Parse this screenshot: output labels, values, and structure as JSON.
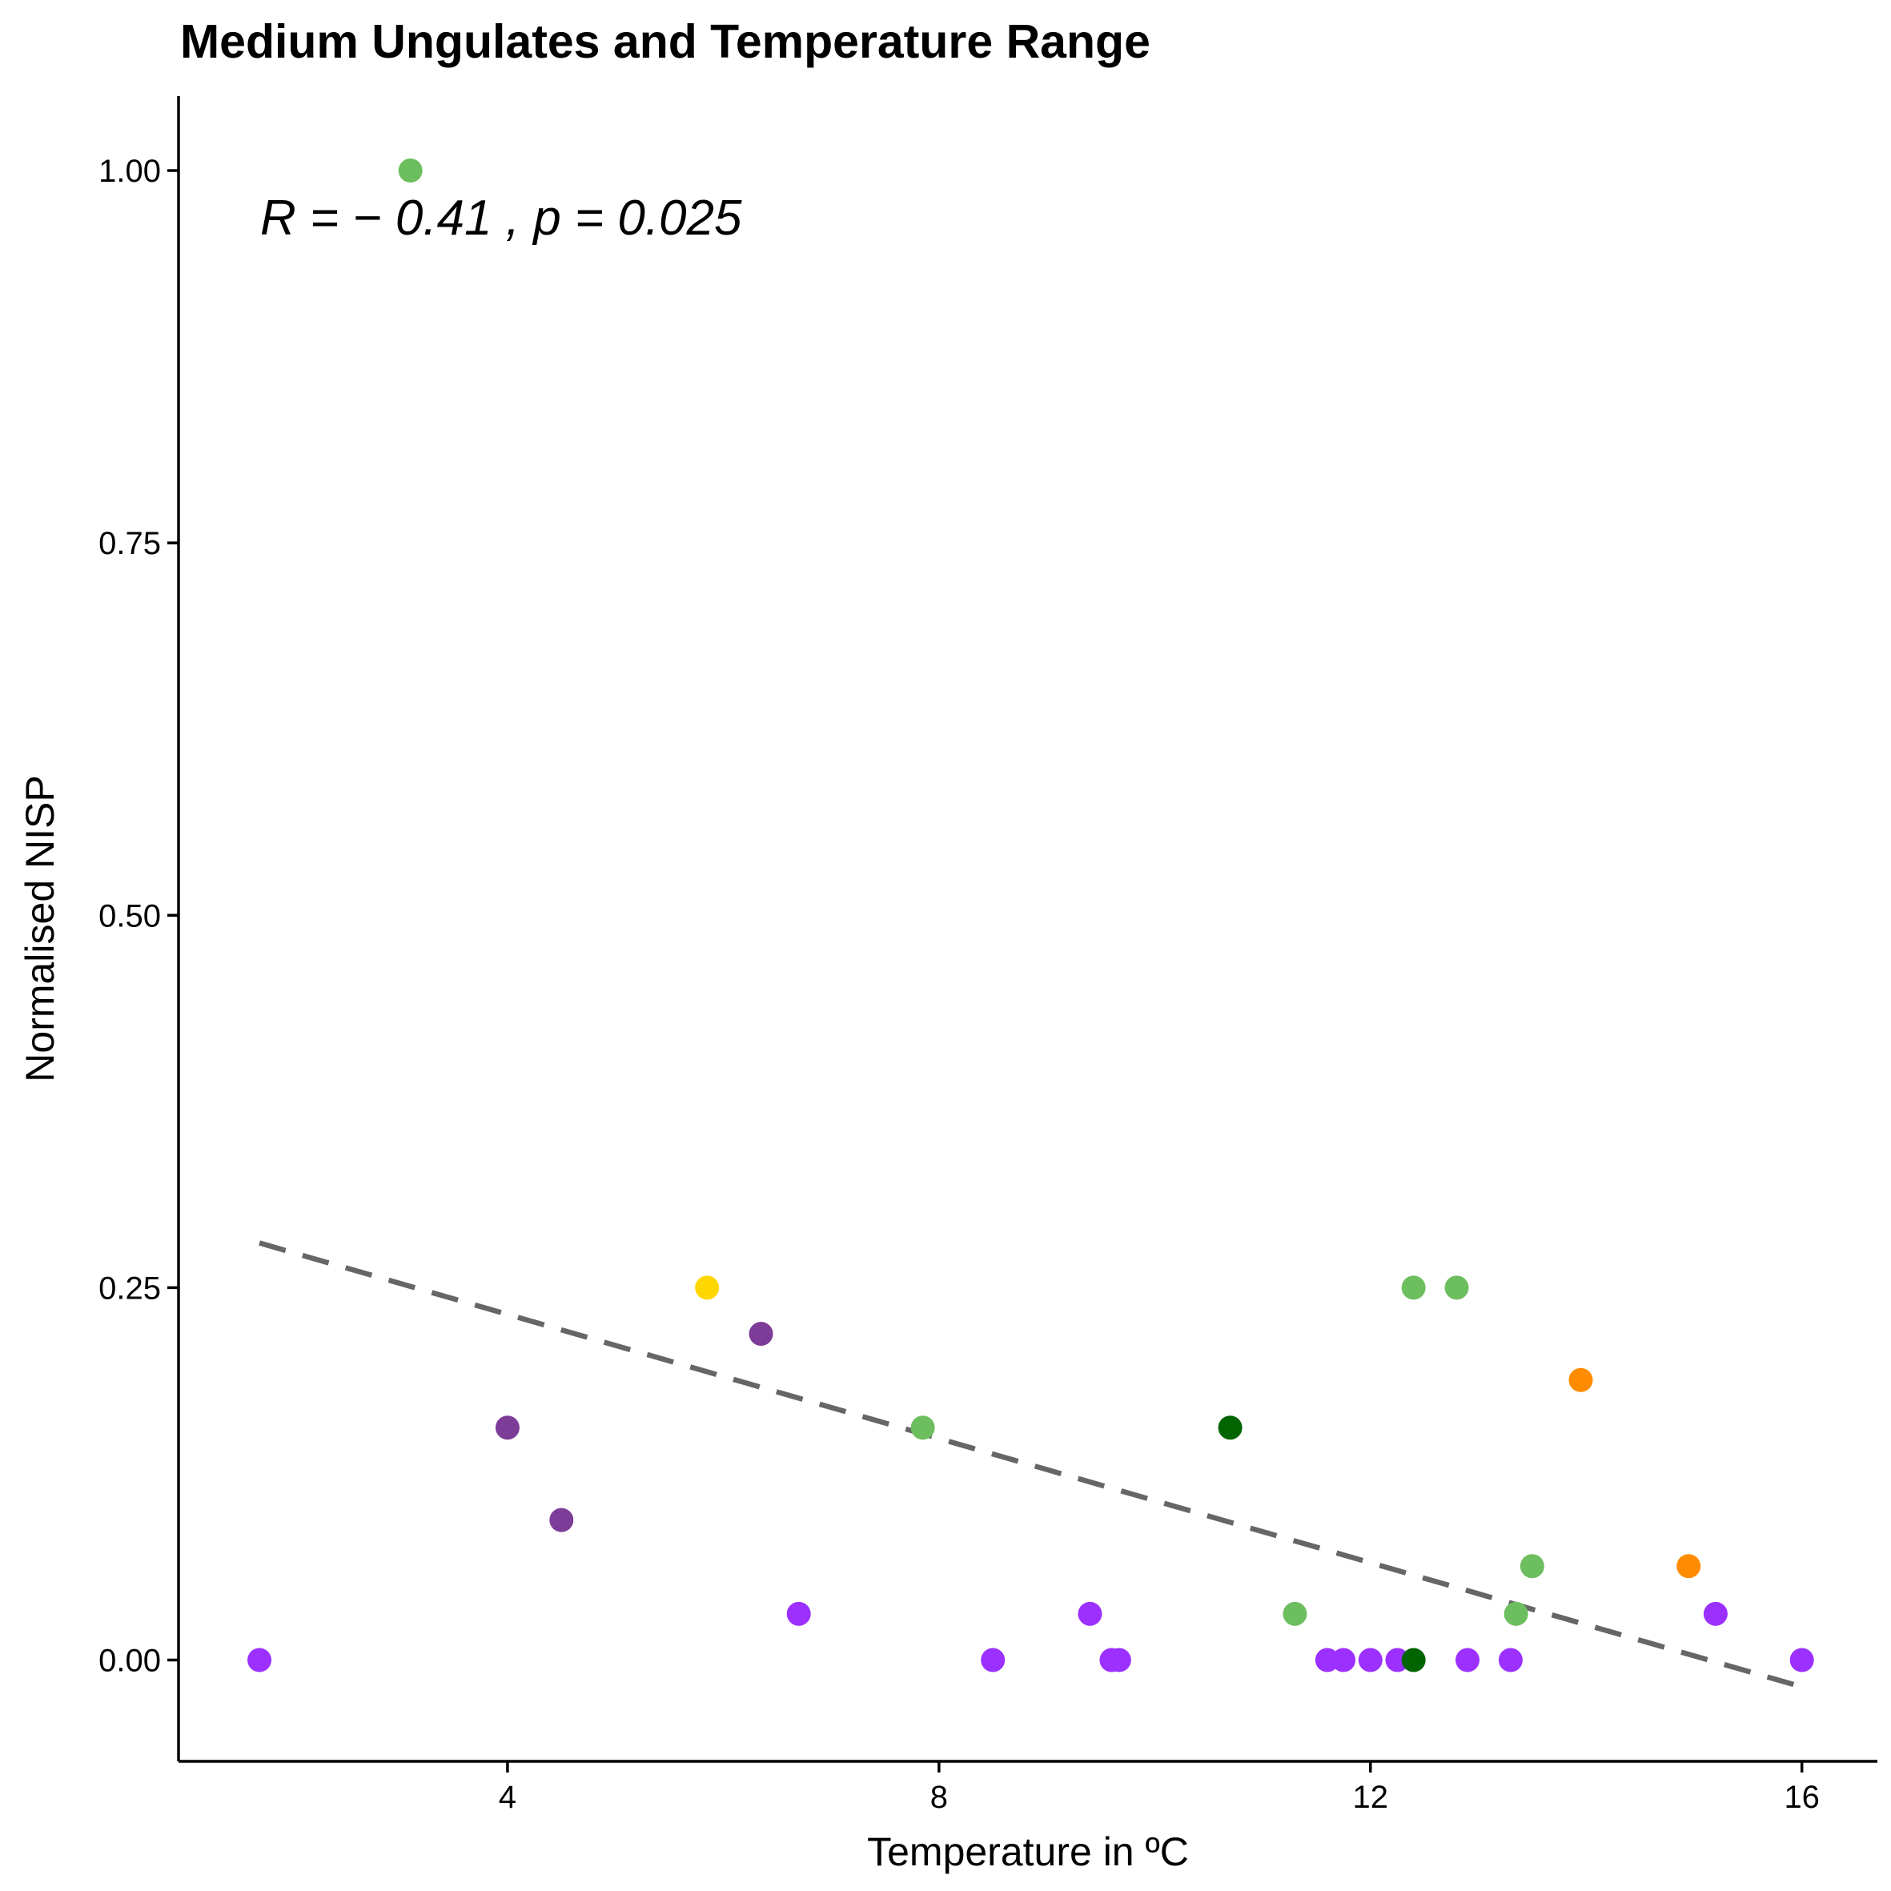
{
  "chart_data": {
    "type": "scatter",
    "title": "Medium Ungulates and Temperature Range",
    "xlabel": "Temperature in ºC",
    "ylabel": "Normalised NISP",
    "xlim": [
      0.95,
      16.7
    ],
    "ylim": [
      -0.068,
      1.05
    ],
    "x_ticks": [
      4,
      8,
      12,
      16
    ],
    "x_tick_labels": [
      "4",
      "8",
      "12",
      "16"
    ],
    "y_ticks": [
      0,
      0.25,
      0.5,
      0.75,
      1
    ],
    "y_tick_labels": [
      "0.00",
      "0.25",
      "0.50",
      "0.75",
      "1.00"
    ],
    "grid": false,
    "annotation": "R = − 0.41 , p = 0.025",
    "colors": {
      "purple": "#9B30FF",
      "darkpurple": "#7D3C98",
      "lightgreen": "#6DBE5E",
      "darkgreen": "#006400",
      "gold": "#FFD700",
      "orange": "#FF8C00",
      "trend": "#666666"
    },
    "points": [
      {
        "x": 1.7,
        "y": 0.0,
        "color": "purple"
      },
      {
        "x": 3.1,
        "y": 1.0,
        "color": "lightgreen"
      },
      {
        "x": 4.0,
        "y": 0.156,
        "color": "darkpurple"
      },
      {
        "x": 4.5,
        "y": 0.094,
        "color": "darkpurple"
      },
      {
        "x": 5.85,
        "y": 0.25,
        "color": "gold"
      },
      {
        "x": 6.35,
        "y": 0.219,
        "color": "darkpurple"
      },
      {
        "x": 6.7,
        "y": 0.031,
        "color": "purple"
      },
      {
        "x": 7.85,
        "y": 0.156,
        "color": "lightgreen"
      },
      {
        "x": 8.5,
        "y": 0.0,
        "color": "purple"
      },
      {
        "x": 9.4,
        "y": 0.031,
        "color": "purple"
      },
      {
        "x": 9.6,
        "y": 0.0,
        "color": "purple"
      },
      {
        "x": 9.67,
        "y": 0.0,
        "color": "purple"
      },
      {
        "x": 10.7,
        "y": 0.156,
        "color": "darkgreen"
      },
      {
        "x": 11.3,
        "y": 0.031,
        "color": "lightgreen"
      },
      {
        "x": 11.6,
        "y": 0.0,
        "color": "purple"
      },
      {
        "x": 11.75,
        "y": 0.0,
        "color": "purple"
      },
      {
        "x": 12.0,
        "y": 0.0,
        "color": "purple"
      },
      {
        "x": 12.25,
        "y": 0.0,
        "color": "purple"
      },
      {
        "x": 12.4,
        "y": 0.25,
        "color": "lightgreen"
      },
      {
        "x": 12.4,
        "y": 0.0,
        "color": "darkgreen"
      },
      {
        "x": 12.8,
        "y": 0.25,
        "color": "lightgreen"
      },
      {
        "x": 12.9,
        "y": 0.0,
        "color": "purple"
      },
      {
        "x": 13.3,
        "y": 0.0,
        "color": "purple"
      },
      {
        "x": 13.35,
        "y": 0.031,
        "color": "lightgreen"
      },
      {
        "x": 13.5,
        "y": 0.063,
        "color": "lightgreen"
      },
      {
        "x": 13.95,
        "y": 0.188,
        "color": "orange"
      },
      {
        "x": 14.95,
        "y": 0.063,
        "color": "orange"
      },
      {
        "x": 15.2,
        "y": 0.031,
        "color": "purple"
      },
      {
        "x": 16.0,
        "y": 0.0,
        "color": "purple"
      }
    ],
    "trendline": {
      "x": [
        1.7,
        16.0
      ],
      "y": [
        0.28,
        -0.018
      ],
      "style": "dashed"
    }
  }
}
